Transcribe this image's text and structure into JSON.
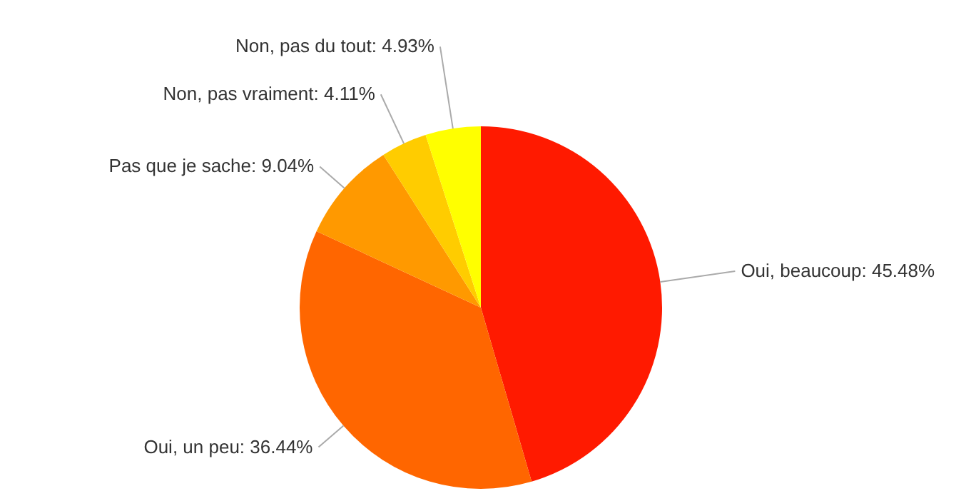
{
  "chart_data": {
    "type": "pie",
    "categories": [
      "Oui, beaucoup",
      "Oui, un peu",
      "Pas que je sache",
      "Non, pas vraiment",
      "Non, pas du tout"
    ],
    "values": [
      45.48,
      36.44,
      9.04,
      4.11,
      4.93
    ],
    "colors": [
      "#ff1a00",
      "#ff6600",
      "#ff9900",
      "#ffcc00",
      "#ffff00"
    ],
    "value_labels": [
      "45.48%",
      "36.44%",
      "9.04%",
      "4.11%",
      "4.93%"
    ]
  }
}
